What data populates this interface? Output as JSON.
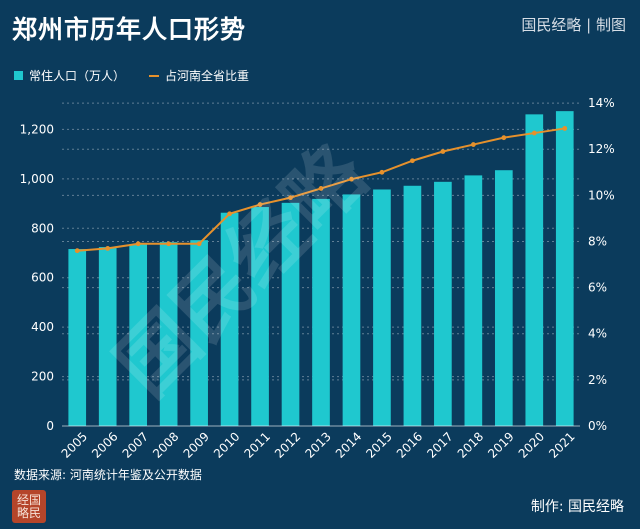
{
  "title": "郑州市历年人口形势",
  "brand": "国民经略 | 制图",
  "legend": {
    "bar_label": "常住人口（万人）",
    "line_label": "占河南全省比重"
  },
  "source": "数据来源: 河南统计年鉴及公开数据",
  "maker": "制作: 国民经略",
  "watermark": "国民经略",
  "colors": {
    "background": "#0b3b5c",
    "bar": "#1fc8cf",
    "line": "#e6912c",
    "text": "#ffffff"
  },
  "chart_data": {
    "type": "bar",
    "categories": [
      "2005",
      "2006",
      "2007",
      "2008",
      "2009",
      "2010",
      "2011",
      "2012",
      "2013",
      "2014",
      "2015",
      "2016",
      "2017",
      "2018",
      "2019",
      "2020",
      "2021"
    ],
    "series": [
      {
        "name": "常住人口（万人）",
        "type": "bar",
        "axis": "left",
        "values": [
          716,
          724,
          736,
          744,
          752,
          863,
          886,
          903,
          919,
          937,
          957,
          972,
          988,
          1014,
          1035,
          1261,
          1274
        ]
      },
      {
        "name": "占河南全省比重",
        "type": "line",
        "axis": "right",
        "values": [
          7.6,
          7.7,
          7.9,
          7.9,
          7.9,
          9.2,
          9.6,
          9.9,
          10.3,
          10.7,
          11.0,
          11.5,
          11.9,
          12.2,
          12.5,
          12.7,
          12.9
        ]
      }
    ],
    "y_left": {
      "ticks": [
        0,
        200,
        400,
        600,
        800,
        1000,
        1200
      ],
      "tick_labels": [
        "0",
        "200",
        "400",
        "600",
        "800",
        "1,000",
        "1,200"
      ],
      "ylim": [
        0,
        1400
      ]
    },
    "y_right": {
      "ticks": [
        0,
        2,
        4,
        6,
        8,
        10,
        12,
        14
      ],
      "tick_labels": [
        "0%",
        "2%",
        "4%",
        "6%",
        "8%",
        "10%",
        "12%",
        "14%"
      ],
      "ylim": [
        0,
        15
      ]
    },
    "grid": true,
    "legend_position": "top-left"
  }
}
